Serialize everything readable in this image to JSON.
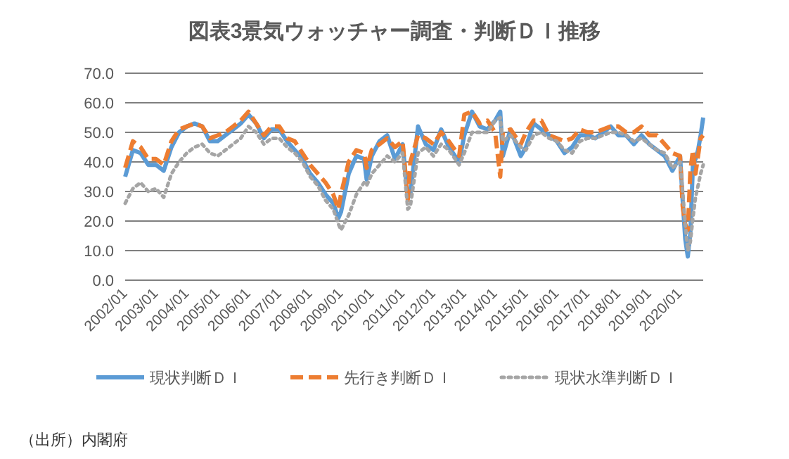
{
  "chart_data": {
    "type": "line",
    "title": "図表3景気ウォッチャー調査・判断ＤＩ推移",
    "x": [
      "2002-01",
      "2002-04",
      "2002-07",
      "2002-10",
      "2003-01",
      "2003-04",
      "2003-07",
      "2003-10",
      "2004-01",
      "2004-04",
      "2004-07",
      "2004-10",
      "2005-01",
      "2005-04",
      "2005-07",
      "2005-10",
      "2006-01",
      "2006-04",
      "2006-07",
      "2006-10",
      "2007-01",
      "2007-04",
      "2007-07",
      "2007-10",
      "2008-01",
      "2008-04",
      "2008-07",
      "2008-10",
      "2008-12",
      "2009-01",
      "2009-04",
      "2009-07",
      "2009-10",
      "2009-11",
      "2010-01",
      "2010-04",
      "2010-07",
      "2010-10",
      "2011-01",
      "2011-03",
      "2011-04",
      "2011-07",
      "2011-10",
      "2012-01",
      "2012-04",
      "2012-07",
      "2012-11",
      "2013-01",
      "2013-04",
      "2013-07",
      "2013-10",
      "2014-01",
      "2014-03",
      "2014-04",
      "2014-07",
      "2014-11",
      "2015-01",
      "2015-04",
      "2015-07",
      "2015-10",
      "2016-01",
      "2016-04",
      "2016-07",
      "2016-10",
      "2017-01",
      "2017-04",
      "2017-07",
      "2017-10",
      "2018-01",
      "2018-04",
      "2018-07",
      "2018-10",
      "2019-01",
      "2019-04",
      "2019-07",
      "2019-10",
      "2020-01",
      "2020-02",
      "2020-03",
      "2020-04",
      "2020-05",
      "2020-06",
      "2020-07",
      "2020-08",
      "2020-09",
      "2020-10"
    ],
    "series": [
      {
        "name": "現状判断ＤＩ",
        "color": "#5b9bd5",
        "line_style": "solid",
        "values": [
          35,
          44,
          43,
          39,
          39,
          37,
          45,
          50,
          52,
          53,
          52,
          47,
          47,
          49,
          51,
          53,
          56,
          53,
          48,
          51,
          51,
          47,
          44,
          41,
          36,
          33,
          29,
          26,
          21,
          23,
          36,
          42,
          41,
          34,
          42,
          47,
          49,
          41,
          46,
          28,
          29,
          52,
          46,
          44,
          51,
          45,
          40,
          49,
          57,
          52,
          51,
          54,
          57,
          42,
          51,
          42,
          45,
          53,
          51,
          49,
          47,
          43,
          45,
          49,
          49,
          48,
          50,
          52,
          49,
          49,
          46,
          49,
          46,
          44,
          42,
          37,
          42,
          27,
          14,
          8,
          16,
          39,
          41,
          44,
          49,
          55
        ]
      },
      {
        "name": "先行き判断ＤＩ",
        "color": "#ed7d31",
        "line_style": "dashed",
        "values": [
          38,
          47,
          45,
          41,
          41,
          39,
          47,
          51,
          52,
          53,
          52,
          48,
          49,
          50,
          52,
          54,
          57,
          53,
          49,
          52,
          52,
          48,
          47,
          43,
          39,
          36,
          33,
          29,
          24,
          29,
          40,
          44,
          43,
          38,
          44,
          46,
          48,
          45,
          47,
          27,
          40,
          49,
          48,
          46,
          50,
          47,
          42,
          56,
          57,
          53,
          54,
          50,
          35,
          50,
          51,
          46,
          50,
          54,
          54,
          49,
          48,
          47,
          48,
          51,
          50,
          50,
          51,
          52,
          52,
          50,
          50,
          52,
          49,
          49,
          46,
          43,
          42,
          25,
          19,
          17,
          37,
          44,
          36,
          42,
          48,
          49
        ]
      },
      {
        "name": "現状水準判断ＤＩ",
        "color": "#a5a5a5",
        "line_style": "dotted",
        "values": [
          26,
          31,
          33,
          30,
          31,
          28,
          36,
          40,
          43,
          45,
          46,
          43,
          42,
          44,
          46,
          48,
          52,
          50,
          46,
          48,
          48,
          45,
          43,
          40,
          35,
          32,
          27,
          24,
          19,
          17,
          22,
          29,
          33,
          32,
          36,
          39,
          42,
          40,
          43,
          24,
          25,
          43,
          45,
          42,
          46,
          44,
          39,
          43,
          50,
          50,
          50,
          54,
          55,
          47,
          49,
          45,
          44,
          49,
          50,
          48,
          47,
          44,
          43,
          47,
          48,
          48,
          49,
          50,
          50,
          49,
          47,
          48,
          46,
          44,
          43,
          38,
          40,
          30,
          19,
          10,
          13,
          21,
          28,
          32,
          36,
          39
        ]
      }
    ],
    "xlim": [
      "2002-01",
      "2020-10"
    ],
    "xticks": [
      {
        "value": "2002-01",
        "label": "2002/01"
      },
      {
        "value": "2003-01",
        "label": "2003/01"
      },
      {
        "value": "2004-01",
        "label": "2004/01"
      },
      {
        "value": "2005-01",
        "label": "2005/01"
      },
      {
        "value": "2006-01",
        "label": "2006/01"
      },
      {
        "value": "2007-01",
        "label": "2007/01"
      },
      {
        "value": "2008-01",
        "label": "2008/01"
      },
      {
        "value": "2009-01",
        "label": "2009/01"
      },
      {
        "value": "2010-01",
        "label": "2010/01"
      },
      {
        "value": "2011-01",
        "label": "2011/01"
      },
      {
        "value": "2012-01",
        "label": "2012/01"
      },
      {
        "value": "2013-01",
        "label": "2013/01"
      },
      {
        "value": "2014-01",
        "label": "2014/01"
      },
      {
        "value": "2015-01",
        "label": "2015/01"
      },
      {
        "value": "2016-01",
        "label": "2016/01"
      },
      {
        "value": "2017-01",
        "label": "2017/01"
      },
      {
        "value": "2018-01",
        "label": "2018/01"
      },
      {
        "value": "2019-01",
        "label": "2019/01"
      },
      {
        "value": "2020-01",
        "label": "2020/01"
      }
    ],
    "ylim": [
      0,
      70
    ],
    "yticks": [
      {
        "value": 0,
        "label": "0.0"
      },
      {
        "value": 10,
        "label": "10.0"
      },
      {
        "value": 20,
        "label": "20.0"
      },
      {
        "value": 30,
        "label": "30.0"
      },
      {
        "value": 40,
        "label": "40.0"
      },
      {
        "value": 50,
        "label": "50.0"
      },
      {
        "value": 60,
        "label": "60.0"
      },
      {
        "value": 70,
        "label": "70.0"
      }
    ],
    "grid": "y",
    "legend": "bottom",
    "marker": "none",
    "annotations": [
      "（出所）内閣府"
    ]
  }
}
